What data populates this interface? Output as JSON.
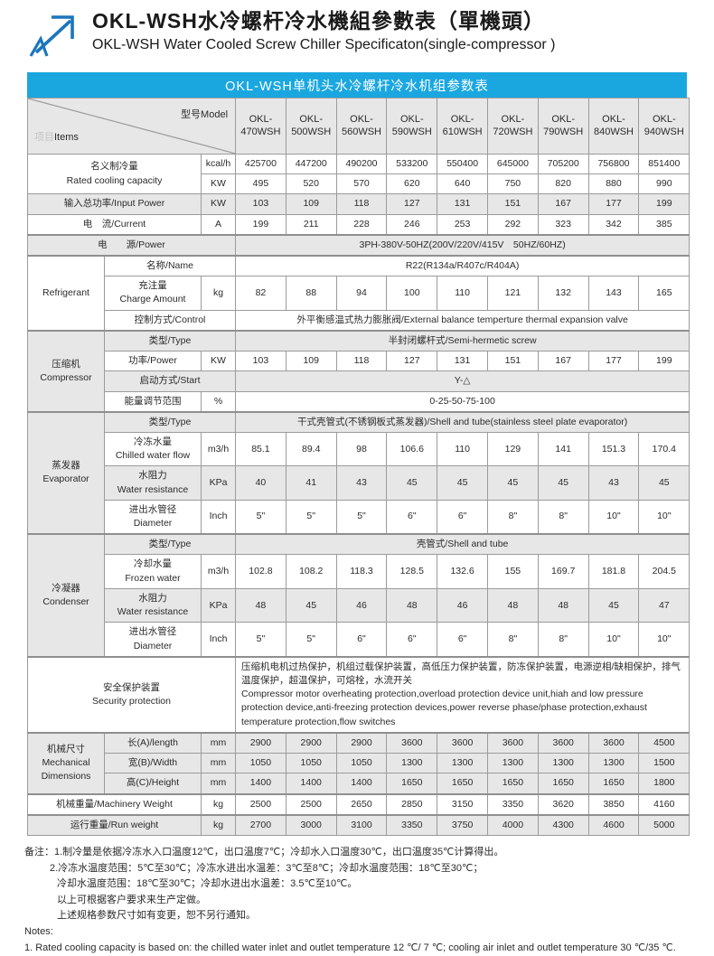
{
  "page": {
    "title_zh": "OKL-WSH水冷螺杆冷水機組參數表（單機頭）",
    "title_en": "OKL-WSH Water Cooled Screw Chiller Specificaton(single-compressor )",
    "band_title": "OKL-WSH单机头水冷螺杆冷水机组参数表"
  },
  "colors": {
    "accent_blue": "#1aa7e0",
    "arrow_blue": "#1b75bc",
    "row_gray": "#e7e7e7",
    "border_gray": "#9b9b9b"
  },
  "header": {
    "items_zh": "项目",
    "items_en": "Items",
    "model_label": "型号Model"
  },
  "models": [
    "OKL-\n470WSH",
    "OKL-\n500WSH",
    "OKL-\n560WSH",
    "OKL-\n590WSH",
    "OKL-\n610WSH",
    "OKL-\n720WSH",
    "OKL-\n790WSH",
    "OKL-\n840WSH",
    "OKL-\n940WSH"
  ],
  "table": {
    "rows": [
      {
        "bg": "w",
        "sec": false,
        "cells": [
          {
            "t": "label",
            "text": "名义制冷量\nRated cooling capacity",
            "cs": 2,
            "rs": 2
          },
          {
            "t": "unit",
            "text": "kcal/h"
          },
          {
            "t": "vals",
            "v": [
              "425700",
              "447200",
              "490200",
              "533200",
              "550400",
              "645000",
              "705200",
              "756800",
              "851400"
            ]
          }
        ]
      },
      {
        "bg": "w",
        "sec": false,
        "cells": [
          {
            "t": "unit",
            "text": "KW"
          },
          {
            "t": "vals",
            "v": [
              "495",
              "520",
              "570",
              "620",
              "640",
              "750",
              "820",
              "880",
              "990"
            ]
          }
        ]
      },
      {
        "bg": "g",
        "sec": false,
        "cells": [
          {
            "t": "label",
            "text": "输入总功率/Input Power",
            "cs": 2
          },
          {
            "t": "unit",
            "text": "KW"
          },
          {
            "t": "vals",
            "v": [
              "103",
              "109",
              "118",
              "127",
              "131",
              "151",
              "167",
              "177",
              "199"
            ]
          }
        ]
      },
      {
        "bg": "w",
        "sec": false,
        "cells": [
          {
            "t": "label",
            "text": "电　流/Current",
            "cs": 2
          },
          {
            "t": "unit",
            "text": "A"
          },
          {
            "t": "vals",
            "v": [
              "199",
              "211",
              "228",
              "246",
              "253",
              "292",
              "323",
              "342",
              "385"
            ]
          }
        ]
      },
      {
        "bg": "g",
        "sec": true,
        "cells": [
          {
            "t": "label",
            "text": "电　　源/Power",
            "cs": 3
          },
          {
            "t": "span",
            "text": "3PH-380V-50HZ(200V/220V/415V　50HZ/60HZ)",
            "cs": 9
          }
        ]
      },
      {
        "bg": "w",
        "sec": true,
        "cells": [
          {
            "t": "group",
            "text": "Refrigerant",
            "rs": 3
          },
          {
            "t": "label",
            "text": "名称/Name",
            "cs": 2
          },
          {
            "t": "span",
            "text": "R22(R134a/R407c/R404A)",
            "cs": 9
          }
        ]
      },
      {
        "bg": "w",
        "sec": false,
        "cells": [
          {
            "t": "label",
            "text": "充注量\nCharge Amount"
          },
          {
            "t": "unit",
            "text": "kg"
          },
          {
            "t": "vals",
            "v": [
              "82",
              "88",
              "94",
              "100",
              "110",
              "121",
              "132",
              "143",
              "165"
            ]
          }
        ]
      },
      {
        "bg": "w",
        "sec": false,
        "cells": [
          {
            "t": "label",
            "text": "控制方式/Control",
            "cs": 2
          },
          {
            "t": "span",
            "text": "外平衡感温式热力膨胀阀/External balance temperture thermal expansion valve",
            "cs": 9
          }
        ]
      },
      {
        "bg": "g",
        "sec": true,
        "cells": [
          {
            "t": "group",
            "text": "压缩机\nCompressor",
            "rs": 4
          },
          {
            "t": "label",
            "text": "类型/Type",
            "cs": 2
          },
          {
            "t": "span",
            "text": "半封闭螺杆式/Semi-hermetic screw",
            "cs": 9
          }
        ]
      },
      {
        "bg": "w",
        "sec": false,
        "cells": [
          {
            "t": "label",
            "text": "功率/Power"
          },
          {
            "t": "unit",
            "text": "KW"
          },
          {
            "t": "vals",
            "v": [
              "103",
              "109",
              "118",
              "127",
              "131",
              "151",
              "167",
              "177",
              "199"
            ]
          }
        ]
      },
      {
        "bg": "g",
        "sec": false,
        "cells": [
          {
            "t": "label",
            "text": "启动方式/Start",
            "cs": 2
          },
          {
            "t": "span",
            "text": "Y-△",
            "cs": 9
          }
        ]
      },
      {
        "bg": "w",
        "sec": false,
        "cells": [
          {
            "t": "label",
            "text": "能量调节范围"
          },
          {
            "t": "unit",
            "text": "%"
          },
          {
            "t": "span",
            "text": "0-25-50-75-100",
            "cs": 9
          }
        ]
      },
      {
        "bg": "g",
        "sec": true,
        "cells": [
          {
            "t": "group",
            "text": "蒸发器\nEvaporator",
            "rs": 4
          },
          {
            "t": "label",
            "text": "类型/Type",
            "cs": 2
          },
          {
            "t": "span",
            "text": "干式壳管式(不锈钢板式蒸发器)/Shell and tube(stainless steel plate evaporator)",
            "cs": 9
          }
        ]
      },
      {
        "bg": "w",
        "sec": false,
        "cells": [
          {
            "t": "label",
            "text": "冷冻水量\nChilled water flow"
          },
          {
            "t": "unit",
            "text": "m3/h"
          },
          {
            "t": "vals",
            "v": [
              "85.1",
              "89.4",
              "98",
              "106.6",
              "110",
              "129",
              "141",
              "151.3",
              "170.4"
            ]
          }
        ]
      },
      {
        "bg": "g",
        "sec": false,
        "cells": [
          {
            "t": "label",
            "text": "水阻力\nWater resistance"
          },
          {
            "t": "unit",
            "text": "KPa"
          },
          {
            "t": "vals",
            "v": [
              "40",
              "41",
              "43",
              "45",
              "45",
              "45",
              "45",
              "43",
              "45"
            ]
          }
        ]
      },
      {
        "bg": "w",
        "sec": false,
        "cells": [
          {
            "t": "label",
            "text": "进出水管径\nDiameter"
          },
          {
            "t": "unit",
            "text": "Inch"
          },
          {
            "t": "vals",
            "v": [
              "5\"",
              "5\"",
              "5\"",
              "6\"",
              "6\"",
              "8\"",
              "8\"",
              "10\"",
              "10\""
            ]
          }
        ]
      },
      {
        "bg": "g",
        "sec": true,
        "cells": [
          {
            "t": "group",
            "text": "冷凝器\nCondenser",
            "rs": 4
          },
          {
            "t": "label",
            "text": "类型/Type",
            "cs": 2
          },
          {
            "t": "span",
            "text": "壳管式/Shell and tube",
            "cs": 9
          }
        ]
      },
      {
        "bg": "w",
        "sec": false,
        "cells": [
          {
            "t": "label",
            "text": "冷却水量\nFrozen water"
          },
          {
            "t": "unit",
            "text": "m3/h"
          },
          {
            "t": "vals",
            "v": [
              "102.8",
              "108.2",
              "118.3",
              "128.5",
              "132.6",
              "155",
              "169.7",
              "181.8",
              "204.5"
            ]
          }
        ]
      },
      {
        "bg": "g",
        "sec": false,
        "cells": [
          {
            "t": "label",
            "text": "水阻力\nWater resistance"
          },
          {
            "t": "unit",
            "text": "KPa"
          },
          {
            "t": "vals",
            "v": [
              "48",
              "45",
              "46",
              "48",
              "46",
              "48",
              "48",
              "45",
              "47"
            ]
          }
        ]
      },
      {
        "bg": "w",
        "sec": false,
        "cells": [
          {
            "t": "label",
            "text": "进出水管径\nDiameter"
          },
          {
            "t": "unit",
            "text": "Inch"
          },
          {
            "t": "vals",
            "v": [
              "5\"",
              "5\"",
              "6\"",
              "6\"",
              "6\"",
              "8\"",
              "8\"",
              "10\"",
              "10\""
            ]
          }
        ]
      },
      {
        "bg": "w",
        "sec": true,
        "cells": [
          {
            "t": "label",
            "text": "安全保护装置\nSecurity protection",
            "cs": 3
          },
          {
            "t": "span",
            "cls": "left",
            "text": "压缩机电机过热保护，机组过载保护装置，高低压力保护装置，防冻保护装置，电源逆相/缺相保护，排气温度保护，超温保护，可熔栓，水流开关\nCompressor motor overheating protection,overload protection device unit,hiah and low pressure protection device,anti-freezing protection devices,power reverse phase/phase protection,exhaust temperature protection,flow switches",
            "cs": 9
          }
        ]
      },
      {
        "bg": "g",
        "sec": true,
        "cells": [
          {
            "t": "group",
            "text": "机械尺寸\nMechanical\nDimensions",
            "rs": 3
          },
          {
            "t": "label",
            "text": "长(A)/length"
          },
          {
            "t": "unit",
            "text": "mm"
          },
          {
            "t": "vals",
            "v": [
              "2900",
              "2900",
              "2900",
              "3600",
              "3600",
              "3600",
              "3600",
              "3600",
              "4500"
            ]
          }
        ]
      },
      {
        "bg": "g",
        "sec": false,
        "cells": [
          {
            "t": "label",
            "text": "宽(B)/Width"
          },
          {
            "t": "unit",
            "text": "mm"
          },
          {
            "t": "vals",
            "v": [
              "1050",
              "1050",
              "1050",
              "1300",
              "1300",
              "1300",
              "1300",
              "1300",
              "1500"
            ]
          }
        ]
      },
      {
        "bg": "g",
        "sec": false,
        "cells": [
          {
            "t": "label",
            "text": "高(C)/Height"
          },
          {
            "t": "unit",
            "text": "mm"
          },
          {
            "t": "vals",
            "v": [
              "1400",
              "1400",
              "1400",
              "1650",
              "1650",
              "1650",
              "1650",
              "1650",
              "1800"
            ]
          }
        ]
      },
      {
        "bg": "w",
        "sec": true,
        "cells": [
          {
            "t": "label",
            "text": "机械重量/Machinery Weight",
            "cs": 2
          },
          {
            "t": "unit",
            "text": "kg"
          },
          {
            "t": "vals",
            "v": [
              "2500",
              "2500",
              "2650",
              "2850",
              "3150",
              "3350",
              "3620",
              "3850",
              "4160"
            ]
          }
        ]
      },
      {
        "bg": "g",
        "sec": true,
        "cells": [
          {
            "t": "label",
            "text": "运行重量/Run weight",
            "cs": 2
          },
          {
            "t": "unit",
            "text": "kg"
          },
          {
            "t": "vals",
            "v": [
              "2700",
              "3000",
              "3100",
              "3350",
              "3750",
              "4000",
              "4300",
              "4600",
              "5000"
            ]
          }
        ]
      }
    ]
  },
  "notes": {
    "zh1": "备注：1.制冷量是依据冷冻水入口温度12℃，出口温度7℃；冷却水入口温度30℃，出口温度35℃计算得出。",
    "zh2": "2.冷冻水温度范围：5℃至30℃；冷冻水进出水温差：3℃至8℃；冷却水温度范围：18℃至30℃；",
    "zh3": "冷却水温度范围：18℃至30℃；冷却水进出水温差：3.5℃至10℃。",
    "zh4": "以上可根据客户要求来生产定做。",
    "zh5": "上述规格参数尺寸如有变更，恕不另行通知。",
    "en_head": "Notes:",
    "en1": "1. Rated cooling capacity is based on: the chilled water inlet and outlet temperature 12 ℃/ 7 ℃; cooling air inlet and outlet temperature 30 ℃/35 ℃."
  }
}
